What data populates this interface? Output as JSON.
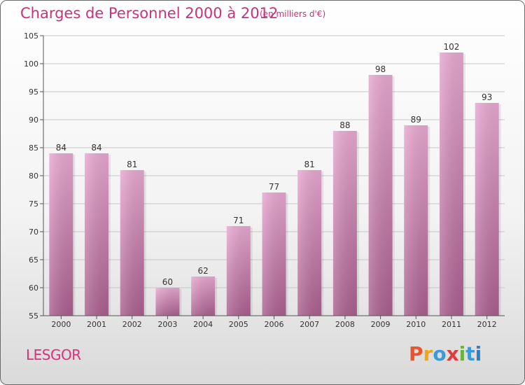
{
  "header": {
    "title": "Charges de Personnel 2000 à 2012",
    "subtitle": "(en milliers d'€)"
  },
  "footer": {
    "commune": "LESGOR",
    "logo_letters": [
      {
        "char": "P",
        "color": "#e8542b"
      },
      {
        "char": "r",
        "color": "#f2a516"
      },
      {
        "char": "o",
        "color": "#3c9ad6"
      },
      {
        "char": "x",
        "color": "#e23b3b"
      },
      {
        "char": "i",
        "color": "#6cb33e"
      },
      {
        "char": "t",
        "color": "#3c9ad6"
      },
      {
        "char": "i",
        "color": "#2f7fc1"
      }
    ]
  },
  "colors": {
    "accent": "#c8327a",
    "bar_top": "#e8a8d0",
    "bar_bottom": "#a95f8e"
  },
  "chart_data": {
    "type": "bar",
    "title": "Charges de Personnel 2000 à 2012",
    "subtitle": "(en milliers d'€)",
    "categories": [
      "2000",
      "2001",
      "2002",
      "2003",
      "2004",
      "2005",
      "2006",
      "2007",
      "2008",
      "2009",
      "2010",
      "2011",
      "2012"
    ],
    "values": [
      84,
      84,
      81,
      60,
      62,
      71,
      77,
      81,
      88,
      98,
      89,
      102,
      93
    ],
    "ylim": [
      55,
      105
    ],
    "yticks": [
      55,
      60,
      65,
      70,
      75,
      80,
      85,
      90,
      95,
      100,
      105
    ],
    "grid": true,
    "xlabel": "",
    "ylabel": ""
  }
}
